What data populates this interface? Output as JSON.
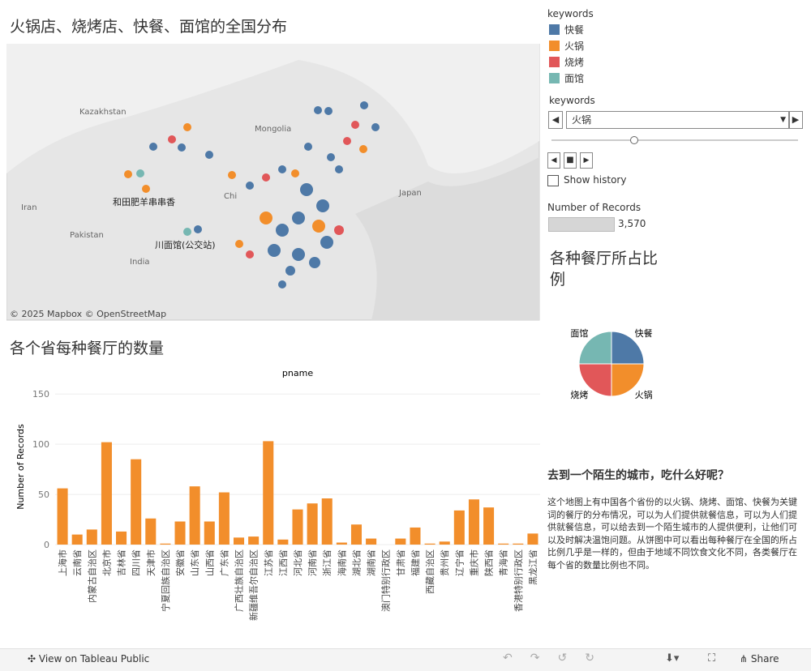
{
  "header": {
    "title": "火锅店、烧烤店、快餐、面馆的全国分布"
  },
  "map": {
    "labels": [
      "Kazakhstan",
      "Mongolia",
      "Iran",
      "Pakistan",
      "India",
      "Japan",
      "Chi"
    ],
    "annotations": [
      "和田肥羊串串香",
      "川面馆(公交站)"
    ],
    "credit": "© 2025 Mapbox © OpenStreetMap"
  },
  "legend": {
    "title": "keywords",
    "items": [
      {
        "name": "快餐",
        "color": "#4e79a7"
      },
      {
        "name": "火锅",
        "color": "#f28e2b"
      },
      {
        "name": "烧烤",
        "color": "#e15759"
      },
      {
        "name": "面馆",
        "color": "#76b7b2"
      }
    ]
  },
  "filter": {
    "title": "keywords",
    "selected": "火锅",
    "history": "Show history"
  },
  "records": {
    "title": "Number of Records",
    "value": "3,570"
  },
  "chart_data": [
    {
      "type": "bar",
      "title": "各个省每种餐厅的数量",
      "x_label": "pname",
      "y_label": "Number of Records",
      "color": "#f28e2b",
      "categories": [
        "上海市",
        "云南省",
        "内蒙古自治区",
        "北京市",
        "吉林省",
        "四川省",
        "天津市",
        "宁夏回族自治区",
        "安徽省",
        "山东省",
        "山西省",
        "广东省",
        "广西壮族自治区",
        "新疆维吾尔自治区",
        "江苏省",
        "江西省",
        "河北省",
        "河南省",
        "浙江省",
        "海南省",
        "湖北省",
        "湖南省",
        "澳门特别行政区",
        "甘肃省",
        "福建省",
        "西藏自治区",
        "贵州省",
        "辽宁省",
        "重庆市",
        "陕西省",
        "青海省",
        "香港特别行政区",
        "黑龙江省"
      ],
      "values": [
        56,
        10,
        15,
        102,
        13,
        85,
        26,
        1,
        23,
        58,
        23,
        52,
        7,
        8,
        103,
        5,
        35,
        41,
        46,
        2,
        20,
        6,
        0,
        6,
        17,
        1,
        3,
        34,
        45,
        37,
        1,
        1,
        11
      ],
      "ylim": [
        0,
        155
      ],
      "yticks": [
        0,
        50,
        100,
        150
      ],
      "grid": true
    },
    {
      "type": "pie",
      "title": "各种餐厅所占比例",
      "categories": [
        "快餐",
        "火锅",
        "烧烤",
        "面馆"
      ],
      "values": [
        25,
        25,
        25,
        25
      ],
      "colors": [
        "#4e79a7",
        "#f28e2b",
        "#e15759",
        "#76b7b2"
      ]
    }
  ],
  "story": {
    "heading": "去到一个陌生的城市，吃什么好呢？",
    "body": "这个地图上有中国各个省份的以火锅、烧烤、面馆、快餐为关键词的餐厅的分布情况，可以为人们提供就餐信息，可以为人们提供就餐信息，可以给去到一个陌生城市的人提供便利，让他们可以及时解决温饱问题。从饼图中可以看出每种餐厅在全国的所占比例几乎是一样的，但由于地域不同饮食文化不同，各类餐厅在每个省的数量比例也不同。"
  },
  "toolbar": {
    "view": "View on Tableau Public",
    "share": "Share"
  }
}
